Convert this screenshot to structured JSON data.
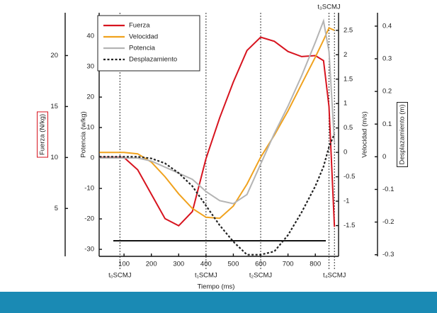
{
  "chart_data": {
    "type": "line",
    "x_label": "Tiempo (ms)",
    "y_label": "Potencia (w/kg)",
    "y2_label": "Velocidad (m/s)",
    "y3_label": "Fuerza (N/kg)",
    "y4_label": "Desplazamiento (m)",
    "x": [
      10,
      100,
      150,
      200,
      250,
      300,
      350,
      400,
      450,
      500,
      550,
      600,
      650,
      700,
      750,
      800,
      830,
      850,
      870
    ],
    "xlim": [
      9,
      885
    ],
    "xticks": [
      100,
      200,
      300,
      400,
      500,
      600,
      700,
      800
    ],
    "ylim": [
      -32.3,
      47.7
    ],
    "yticks": [
      40,
      30,
      20,
      10,
      0,
      -10,
      -20,
      -30
    ],
    "y2lim": [
      -2.13,
      2.86
    ],
    "y2ticks": [
      2.5,
      2,
      1.5,
      1,
      0.5,
      0,
      -0.5,
      -1,
      -1.5
    ],
    "y3lim": [
      0.3,
      24.2
    ],
    "y3ticks": [
      20,
      15,
      10,
      5
    ],
    "y4lim": [
      -0.305,
      0.441
    ],
    "y4ticks": [
      0.4,
      0.3,
      0.2,
      0.1,
      0,
      -0.1,
      -0.2,
      -0.3
    ],
    "series": [
      {
        "name": "Fuerza",
        "color": "#d7141f",
        "axis": "y3",
        "style": "solid",
        "values": [
          10,
          10,
          8.8,
          6.4,
          4.0,
          3.3,
          4.7,
          9.9,
          13.9,
          17.4,
          20.5,
          21.8,
          21.4,
          20.4,
          19.9,
          20.0,
          19.5,
          15.0,
          3.2
        ]
      },
      {
        "name": "Velocidad",
        "color": "#f0a21e",
        "axis": "y2",
        "style": "solid",
        "values": [
          0,
          0,
          -0.03,
          -0.2,
          -0.5,
          -0.85,
          -1.15,
          -1.33,
          -1.35,
          -1.1,
          -0.65,
          -0.1,
          0.35,
          0.85,
          1.4,
          1.95,
          2.3,
          2.55,
          2.5
        ]
      },
      {
        "name": "Potencia",
        "color": "#b4b4b4",
        "axis": "y",
        "style": "solid",
        "values": [
          0,
          0,
          0,
          -1,
          -3,
          -5,
          -7,
          -11,
          -14,
          -15,
          -12,
          -2,
          8,
          17,
          27,
          38,
          45,
          35,
          5
        ]
      },
      {
        "name": "Desplazamiento",
        "color": "#222222",
        "axis": "y4",
        "style": "dashed",
        "values": [
          0,
          0,
          0,
          -0.005,
          -0.02,
          -0.05,
          -0.09,
          -0.15,
          -0.21,
          -0.26,
          -0.3,
          -0.3,
          -0.29,
          -0.24,
          -0.17,
          -0.09,
          -0.03,
          0.03,
          0.07
        ]
      }
    ],
    "events": [
      {
        "label": "t₀SCMJ",
        "x": 85,
        "position": "bottom"
      },
      {
        "label": "t₁SCMJ",
        "x": 400,
        "position": "bottom"
      },
      {
        "label": "t₂SCMJ",
        "x": 600,
        "position": "bottom"
      },
      {
        "label": "t₃SCMJ",
        "x": 850,
        "position": "top"
      },
      {
        "label": "t₄SCMJ",
        "x": 870,
        "position": "bottom"
      }
    ]
  }
}
